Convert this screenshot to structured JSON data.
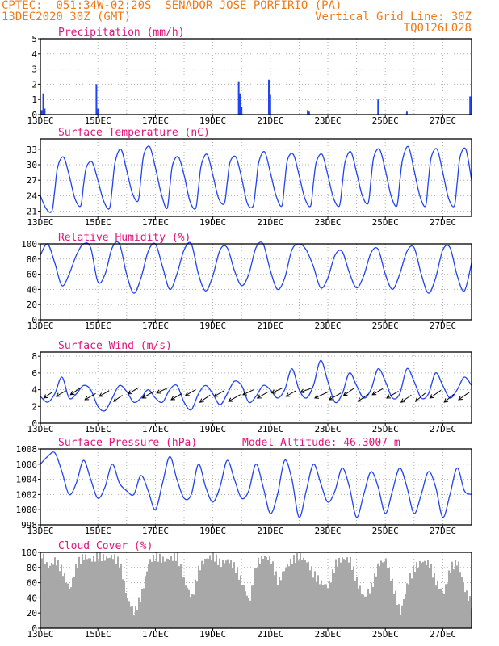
{
  "header": {
    "line1_left": "CPTEC:  051:34W-02:20S  SENADOR JOSE PORFIRIO (PA)",
    "line2_left": "13DEC2020 30Z (GMT)",
    "line2_right": "Vertical Grid Line: 30Z",
    "line3_right": "TQ0126L028"
  },
  "colors": {
    "header": "#f07a18",
    "title": "#e0147a",
    "line": "#2244ee",
    "bar": "#2244ee",
    "cloud": "#a8a8a8",
    "arrow": "#000000",
    "grid": "#b0b0b0"
  },
  "chart_data": [
    {
      "id": "precip",
      "type": "bar",
      "title": "Precipitation (mm/h)",
      "ylim": [
        0,
        5
      ],
      "yticks": [
        0,
        1,
        2,
        3,
        4,
        5
      ],
      "xticks": [
        "13DEC",
        "15DEC",
        "17DEC",
        "19DEC",
        "21DEC",
        "23DEC",
        "25DEC",
        "27DEC"
      ],
      "x_days": [
        0.05,
        0.1,
        0.15,
        1.95,
        2.0,
        6.9,
        6.95,
        7.0,
        7.95,
        8.0,
        9.3,
        9.35,
        11.75,
        12.75,
        14.95
      ],
      "values": [
        0.3,
        1.4,
        0.4,
        2.0,
        0.4,
        2.2,
        1.4,
        0.5,
        2.3,
        1.3,
        0.3,
        0.2,
        1.0,
        0.2,
        1.2
      ]
    },
    {
      "id": "temp",
      "type": "line",
      "title": "Surface Temperature (nC)",
      "ylim": [
        20,
        35
      ],
      "yticks": [
        21,
        24,
        27,
        30,
        33
      ],
      "xticks": [
        "13DEC",
        "15DEC",
        "17DEC",
        "19DEC",
        "21DEC",
        "23DEC",
        "25DEC",
        "27DEC"
      ],
      "x_days": [
        0.0,
        0.2,
        0.4,
        0.5,
        0.6,
        0.8,
        1.0,
        1.2,
        1.4,
        1.5,
        1.6,
        1.8,
        2.0,
        2.2,
        2.4,
        2.5,
        2.6,
        2.8,
        3.0,
        3.2,
        3.4,
        3.5,
        3.6,
        3.8,
        4.0,
        4.2,
        4.4,
        4.5,
        4.6,
        4.8,
        5.0,
        5.2,
        5.4,
        5.5,
        5.6,
        5.8,
        6.0,
        6.2,
        6.4,
        6.5,
        6.6,
        6.8,
        7.0,
        7.2,
        7.4,
        7.5,
        7.6,
        7.8,
        8.0,
        8.2,
        8.4,
        8.5,
        8.6,
        8.8,
        9.0,
        9.2,
        9.4,
        9.5,
        9.6,
        9.8,
        10.0,
        10.2,
        10.4,
        10.5,
        10.6,
        10.8,
        11.0,
        11.2,
        11.4,
        11.5,
        11.6,
        11.8,
        12.0,
        12.2,
        12.4,
        12.5,
        12.6,
        12.8,
        13.0,
        13.2,
        13.4,
        13.5,
        13.6,
        13.8,
        14.0,
        14.2,
        14.4,
        14.5,
        14.6,
        14.8,
        15.0
      ],
      "values": [
        24.0,
        21.5,
        21.0,
        25.0,
        29.5,
        31.5,
        28.0,
        23.5,
        22.0,
        26.0,
        29.5,
        30.5,
        27.0,
        23.0,
        21.5,
        25.5,
        30.5,
        33.0,
        29.0,
        24.5,
        23.0,
        27.5,
        32.0,
        33.5,
        29.5,
        24.5,
        21.5,
        25.5,
        30.0,
        31.5,
        28.0,
        23.0,
        21.5,
        25.5,
        30.0,
        32.0,
        28.0,
        23.5,
        22.5,
        26.5,
        30.5,
        31.5,
        27.5,
        22.5,
        22.0,
        26.0,
        30.5,
        32.5,
        28.5,
        24.0,
        22.0,
        26.5,
        31.0,
        32.0,
        28.0,
        23.5,
        22.0,
        26.5,
        30.5,
        32.0,
        28.0,
        23.5,
        22.0,
        26.0,
        30.5,
        32.5,
        28.5,
        24.0,
        22.5,
        27.0,
        31.5,
        33.0,
        29.0,
        24.0,
        22.0,
        26.5,
        31.0,
        33.5,
        29.0,
        24.0,
        22.0,
        27.0,
        31.5,
        33.0,
        28.5,
        23.5,
        22.0,
        26.5,
        31.5,
        33.0,
        27.0
      ]
    },
    {
      "id": "rh",
      "type": "line",
      "title": "Relative Humidity (%)",
      "ylim": [
        0,
        100
      ],
      "yticks": [
        0,
        20,
        40,
        60,
        80,
        100
      ],
      "xticks": [
        "13DEC",
        "15DEC",
        "17DEC",
        "19DEC",
        "21DEC",
        "23DEC",
        "25DEC",
        "27DEC"
      ],
      "x_days": [
        0.0,
        0.25,
        0.5,
        0.75,
        1.0,
        1.25,
        1.5,
        1.75,
        2.0,
        2.25,
        2.5,
        2.75,
        3.0,
        3.25,
        3.5,
        3.75,
        4.0,
        4.25,
        4.5,
        4.75,
        5.0,
        5.25,
        5.5,
        5.75,
        6.0,
        6.25,
        6.5,
        6.75,
        7.0,
        7.25,
        7.5,
        7.75,
        8.0,
        8.25,
        8.5,
        8.75,
        9.0,
        9.25,
        9.5,
        9.75,
        10.0,
        10.25,
        10.5,
        10.75,
        11.0,
        11.25,
        11.5,
        11.75,
        12.0,
        12.25,
        12.5,
        12.75,
        13.0,
        13.25,
        13.5,
        13.75,
        14.0,
        14.25,
        14.5,
        14.75,
        15.0
      ],
      "values": [
        85,
        100,
        75,
        45,
        60,
        85,
        100,
        95,
        50,
        60,
        95,
        100,
        60,
        35,
        55,
        90,
        100,
        70,
        40,
        60,
        92,
        100,
        60,
        38,
        58,
        92,
        95,
        65,
        45,
        60,
        95,
        100,
        65,
        40,
        55,
        92,
        100,
        92,
        70,
        42,
        55,
        85,
        90,
        62,
        42,
        58,
        88,
        93,
        60,
        40,
        60,
        90,
        95,
        60,
        35,
        55,
        92,
        95,
        58,
        38,
        75
      ]
    },
    {
      "id": "wind",
      "type": "line",
      "title": "Surface Wind (m/s)",
      "ylim": [
        0,
        8.5
      ],
      "yticks": [
        0,
        2,
        4,
        6,
        8
      ],
      "xticks": [
        "13DEC",
        "15DEC",
        "17DEC",
        "19DEC",
        "21DEC",
        "23DEC",
        "25DEC",
        "27DEC"
      ],
      "x_days": [
        0.0,
        0.25,
        0.5,
        0.75,
        1.0,
        1.25,
        1.5,
        1.75,
        2.0,
        2.25,
        2.5,
        2.75,
        3.0,
        3.25,
        3.5,
        3.75,
        4.0,
        4.25,
        4.5,
        4.75,
        5.0,
        5.25,
        5.5,
        5.75,
        6.0,
        6.25,
        6.5,
        6.75,
        7.0,
        7.25,
        7.5,
        7.75,
        8.0,
        8.25,
        8.5,
        8.75,
        9.0,
        9.25,
        9.5,
        9.75,
        10.0,
        10.25,
        10.5,
        10.75,
        11.0,
        11.25,
        11.5,
        11.75,
        12.0,
        12.25,
        12.5,
        12.75,
        13.0,
        13.25,
        13.5,
        13.75,
        14.0,
        14.25,
        14.5,
        14.75,
        15.0
      ],
      "values": [
        3.2,
        2.5,
        3.5,
        5.5,
        3.0,
        3.5,
        4.5,
        4.0,
        2.0,
        1.5,
        3.0,
        4.5,
        3.8,
        2.5,
        3.0,
        4.0,
        3.0,
        2.5,
        4.0,
        4.5,
        2.5,
        1.6,
        3.5,
        4.5,
        3.5,
        2.2,
        3.5,
        5.0,
        4.5,
        2.5,
        3.2,
        4.5,
        4.0,
        3.0,
        4.0,
        6.5,
        4.0,
        3.0,
        4.5,
        7.5,
        5.0,
        2.5,
        3.5,
        6.0,
        4.5,
        3.0,
        4.0,
        6.5,
        5.0,
        3.0,
        3.5,
        6.5,
        5.0,
        3.0,
        3.5,
        6.0,
        4.5,
        3.0,
        4.0,
        5.5,
        4.5
      ]
    },
    {
      "id": "pres",
      "type": "line",
      "title": "Surface Pressure (hPa)",
      "annotation": "Model Altitude: 46.3007 m",
      "ylim": [
        998,
        1008
      ],
      "yticks": [
        998,
        1000,
        1002,
        1004,
        1006,
        1008
      ],
      "xticks": [
        "13DEC",
        "15DEC",
        "17DEC",
        "19DEC",
        "21DEC",
        "23DEC",
        "25DEC",
        "27DEC"
      ],
      "x_days": [
        0.0,
        0.25,
        0.5,
        0.75,
        1.0,
        1.25,
        1.5,
        1.75,
        2.0,
        2.25,
        2.5,
        2.75,
        3.0,
        3.25,
        3.5,
        3.75,
        4.0,
        4.25,
        4.5,
        4.75,
        5.0,
        5.25,
        5.5,
        5.75,
        6.0,
        6.25,
        6.5,
        6.75,
        7.0,
        7.25,
        7.5,
        7.75,
        8.0,
        8.25,
        8.5,
        8.75,
        9.0,
        9.25,
        9.5,
        9.75,
        10.0,
        10.25,
        10.5,
        10.75,
        11.0,
        11.25,
        11.5,
        11.75,
        12.0,
        12.25,
        12.5,
        12.75,
        13.0,
        13.25,
        13.5,
        13.75,
        14.0,
        14.25,
        14.5,
        14.75,
        15.0
      ],
      "values": [
        1006.0,
        1007.0,
        1007.5,
        1005.0,
        1002.0,
        1003.5,
        1006.5,
        1004.0,
        1001.5,
        1003.0,
        1006.0,
        1003.5,
        1002.5,
        1002.0,
        1004.5,
        1002.5,
        1000.0,
        1003.5,
        1007.0,
        1004.0,
        1001.5,
        1002.0,
        1006.0,
        1003.0,
        1001.0,
        1003.0,
        1006.5,
        1004.0,
        1001.5,
        1002.5,
        1006.0,
        1003.0,
        999.5,
        1002.0,
        1006.5,
        1004.0,
        999.0,
        1002.5,
        1006.0,
        1003.5,
        1001.0,
        1002.5,
        1005.5,
        1003.0,
        999.0,
        1002.0,
        1005.0,
        1003.0,
        999.5,
        1002.5,
        1005.5,
        1003.0,
        999.5,
        1002.0,
        1005.0,
        1003.0,
        999.0,
        1002.0,
        1005.5,
        1002.5,
        1002.0
      ]
    },
    {
      "id": "cloud",
      "type": "bar",
      "title": "Cloud Cover (%)",
      "ylim": [
        0,
        100
      ],
      "yticks": [
        0,
        20,
        40,
        60,
        80,
        100
      ],
      "xticks": [
        "13DEC",
        "15DEC",
        "17DEC",
        "19DEC",
        "21DEC",
        "23DEC",
        "25DEC",
        "27DEC"
      ],
      "x_days": [
        0.0,
        0.25,
        0.5,
        0.75,
        1.0,
        1.25,
        1.5,
        1.75,
        2.0,
        2.25,
        2.5,
        2.75,
        3.0,
        3.25,
        3.5,
        3.75,
        4.0,
        4.25,
        4.5,
        4.75,
        5.0,
        5.25,
        5.5,
        5.75,
        6.0,
        6.25,
        6.5,
        6.75,
        7.0,
        7.25,
        7.5,
        7.75,
        8.0,
        8.25,
        8.5,
        8.75,
        9.0,
        9.25,
        9.5,
        9.75,
        10.0,
        10.25,
        10.5,
        10.75,
        11.0,
        11.25,
        11.5,
        11.75,
        12.0,
        12.25,
        12.5,
        12.75,
        13.0,
        13.25,
        13.5,
        13.75,
        14.0,
        14.25,
        14.5,
        14.75,
        15.0
      ],
      "values": [
        100,
        80,
        90,
        75,
        50,
        85,
        95,
        90,
        95,
        92,
        95,
        85,
        40,
        20,
        45,
        88,
        95,
        90,
        92,
        95,
        60,
        40,
        80,
        92,
        95,
        85,
        90,
        80,
        60,
        35,
        85,
        95,
        90,
        60,
        80,
        90,
        95,
        88,
        70,
        60,
        55,
        85,
        92,
        90,
        60,
        40,
        55,
        85,
        90,
        55,
        20,
        60,
        80,
        88,
        85,
        60,
        45,
        80,
        88,
        50,
        30
      ]
    }
  ],
  "wind_arrows": {
    "x_days": [
      0.12,
      0.55,
      1.05,
      1.55,
      2.05,
      2.55,
      3.05,
      3.55,
      4.05,
      4.55,
      5.05,
      5.55,
      6.05,
      6.55,
      7.05,
      7.55,
      8.05,
      8.55,
      9.05,
      9.55,
      10.05,
      10.55,
      11.05,
      11.55,
      12.05,
      12.55,
      13.05,
      13.55,
      14.05,
      14.55
    ],
    "y": [
      3.0,
      3.2,
      3.4,
      2.8,
      3.2,
      2.6,
      3.5,
      3.0,
      3.6,
      2.8,
      3.3,
      2.5,
      3.2,
      2.6,
      3.4,
      3.0,
      3.6,
      3.2,
      3.7,
      3.0,
      2.8,
      3.3,
      2.6,
      3.4,
      3.0,
      2.5,
      2.6,
      3.0,
      2.5,
      2.8
    ],
    "speed": [
      3.0,
      3.2,
      3.4,
      3.5,
      3.2,
      3.0,
      3.5,
      3.8,
      3.6,
      3.4,
      3.3,
      3.5,
      3.2,
      3.8,
      3.4,
      3.6,
      3.6,
      3.2,
      3.7,
      4.0,
      3.8,
      3.8,
      3.6,
      3.4,
      3.8,
      3.5,
      3.6,
      3.8,
      3.5,
      3.8
    ],
    "dir_deg": [
      35,
      30,
      35,
      30,
      30,
      35,
      30,
      30,
      25,
      30,
      30,
      35,
      30,
      30,
      25,
      30,
      25,
      30,
      20,
      25,
      30,
      35,
      35,
      30,
      30,
      35,
      40,
      35,
      40,
      35
    ]
  }
}
